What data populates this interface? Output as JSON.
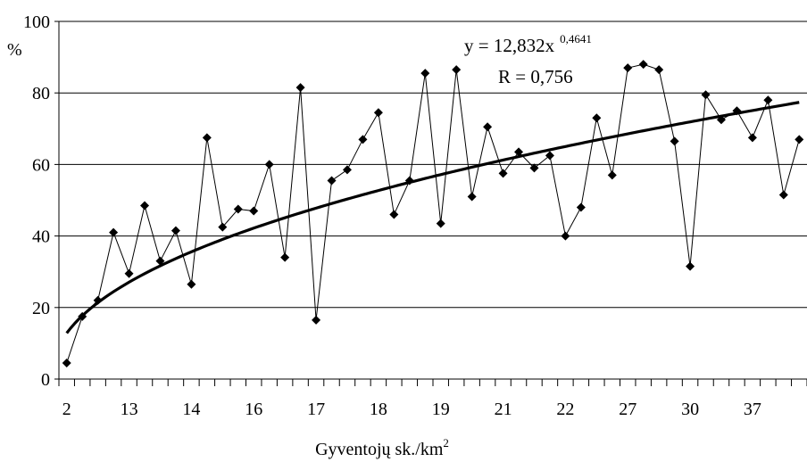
{
  "chart_data": {
    "type": "line",
    "ylabel": "%",
    "xlabel": "Gyventojų sk./km",
    "xlabel_sup": "2",
    "ylim": [
      0,
      100
    ],
    "yticks": [
      "0",
      "20",
      "40",
      "60",
      "80",
      "100"
    ],
    "grid": "horizontal",
    "x_tick_labels": [
      "2",
      "13",
      "14",
      "16",
      "17",
      "18",
      "19",
      "21",
      "22",
      "27",
      "30",
      "37"
    ],
    "x_tick_label_every": 4,
    "series": [
      {
        "style": "line-markers",
        "values": [
          4.5,
          17.5,
          22,
          41,
          29.5,
          48.5,
          33,
          41.5,
          26.5,
          67.5,
          42.5,
          47.5,
          47,
          60,
          34,
          81.5,
          16.5,
          55.5,
          58.5,
          67,
          74.5,
          46,
          55.5,
          85.5,
          43.5,
          86.5,
          51,
          70.5,
          57.5,
          63.5,
          59,
          62.5,
          40,
          48,
          73,
          57,
          87,
          88,
          86.5,
          66.5,
          31.5,
          79.5,
          72.5,
          75,
          67.5,
          78,
          51.5,
          67
        ]
      },
      {
        "style": "trend",
        "a": 12.832,
        "b": 0.4641
      }
    ],
    "annotation": {
      "equation_base": "y = 12,832x",
      "equation_exp": "0,4641",
      "r_text": "R = 0,756"
    }
  }
}
